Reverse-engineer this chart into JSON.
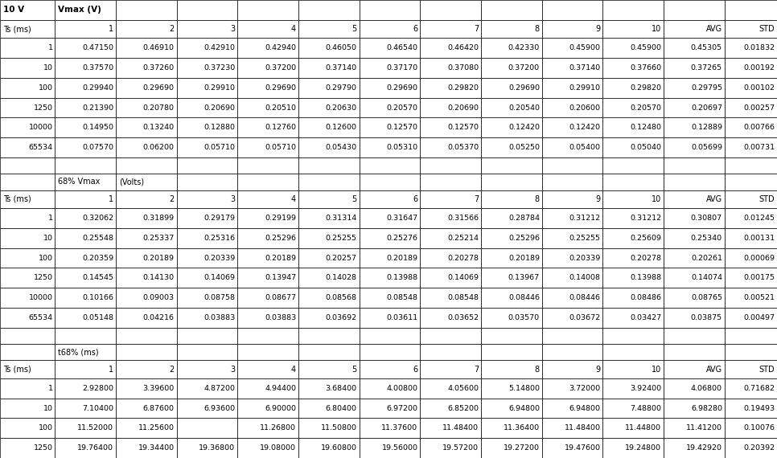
{
  "title": "10 V",
  "col_headers": [
    "Ts (ms)",
    "1",
    "2",
    "3",
    "4",
    "5",
    "6",
    "7",
    "8",
    "9",
    "10",
    "AVG",
    "STD"
  ],
  "section1_rows": [
    [
      "1",
      "0.47150",
      "0.46910",
      "0.42910",
      "0.42940",
      "0.46050",
      "0.46540",
      "0.46420",
      "0.42330",
      "0.45900",
      "0.45900",
      "0.45305",
      "0.01832"
    ],
    [
      "10",
      "0.37570",
      "0.37260",
      "0.37230",
      "0.37200",
      "0.37140",
      "0.37170",
      "0.37080",
      "0.37200",
      "0.37140",
      "0.37660",
      "0.37265",
      "0.00192"
    ],
    [
      "100",
      "0.29940",
      "0.29690",
      "0.29910",
      "0.29690",
      "0.29790",
      "0.29690",
      "0.29820",
      "0.29690",
      "0.29910",
      "0.29820",
      "0.29795",
      "0.00102"
    ],
    [
      "1250",
      "0.21390",
      "0.20780",
      "0.20690",
      "0.20510",
      "0.20630",
      "0.20570",
      "0.20690",
      "0.20540",
      "0.20600",
      "0.20570",
      "0.20697",
      "0.00257"
    ],
    [
      "10000",
      "0.14950",
      "0.13240",
      "0.12880",
      "0.12760",
      "0.12600",
      "0.12570",
      "0.12570",
      "0.12420",
      "0.12420",
      "0.12480",
      "0.12889",
      "0.00766"
    ],
    [
      "65534",
      "0.07570",
      "0.06200",
      "0.05710",
      "0.05710",
      "0.05430",
      "0.05310",
      "0.05370",
      "0.05250",
      "0.05400",
      "0.05040",
      "0.05699",
      "0.00731"
    ]
  ],
  "section2_rows": [
    [
      "1",
      "0.32062",
      "0.31899",
      "0.29179",
      "0.29199",
      "0.31314",
      "0.31647",
      "0.31566",
      "0.28784",
      "0.31212",
      "0.31212",
      "0.30807",
      "0.01245"
    ],
    [
      "10",
      "0.25548",
      "0.25337",
      "0.25316",
      "0.25296",
      "0.25255",
      "0.25276",
      "0.25214",
      "0.25296",
      "0.25255",
      "0.25609",
      "0.25340",
      "0.00131"
    ],
    [
      "100",
      "0.20359",
      "0.20189",
      "0.20339",
      "0.20189",
      "0.20257",
      "0.20189",
      "0.20278",
      "0.20189",
      "0.20339",
      "0.20278",
      "0.20261",
      "0.00069"
    ],
    [
      "1250",
      "0.14545",
      "0.14130",
      "0.14069",
      "0.13947",
      "0.14028",
      "0.13988",
      "0.14069",
      "0.13967",
      "0.14008",
      "0.13988",
      "0.14074",
      "0.00175"
    ],
    [
      "10000",
      "0.10166",
      "0.09003",
      "0.08758",
      "0.08677",
      "0.08568",
      "0.08548",
      "0.08548",
      "0.08446",
      "0.08446",
      "0.08486",
      "0.08765",
      "0.00521"
    ],
    [
      "65534",
      "0.05148",
      "0.04216",
      "0.03883",
      "0.03883",
      "0.03692",
      "0.03611",
      "0.03652",
      "0.03570",
      "0.03672",
      "0.03427",
      "0.03875",
      "0.00497"
    ]
  ],
  "section3_rows": [
    [
      "1",
      "2.92800",
      "3.39600",
      "4.87200",
      "4.94400",
      "3.68400",
      "4.00800",
      "4.05600",
      "5.14800",
      "3.72000",
      "3.92400",
      "4.06800",
      "0.71682"
    ],
    [
      "10",
      "7.10400",
      "6.87600",
      "6.93600",
      "6.90000",
      "6.80400",
      "6.97200",
      "6.85200",
      "6.94800",
      "6.94800",
      "7.48800",
      "6.98280",
      "0.19493"
    ],
    [
      "100",
      "11.52000",
      "11.25600",
      "",
      "11.26800",
      "11.50800",
      "11.37600",
      "11.48400",
      "11.36400",
      "11.48400",
      "11.44800",
      "11.41200",
      "0.10076"
    ],
    [
      "1250",
      "19.76400",
      "19.34400",
      "19.36800",
      "19.08000",
      "19.60800",
      "19.56000",
      "19.57200",
      "19.27200",
      "19.47600",
      "19.24800",
      "19.42920",
      "0.20392"
    ]
  ],
  "figsize": [
    9.66,
    5.7
  ],
  "dpi": 100
}
